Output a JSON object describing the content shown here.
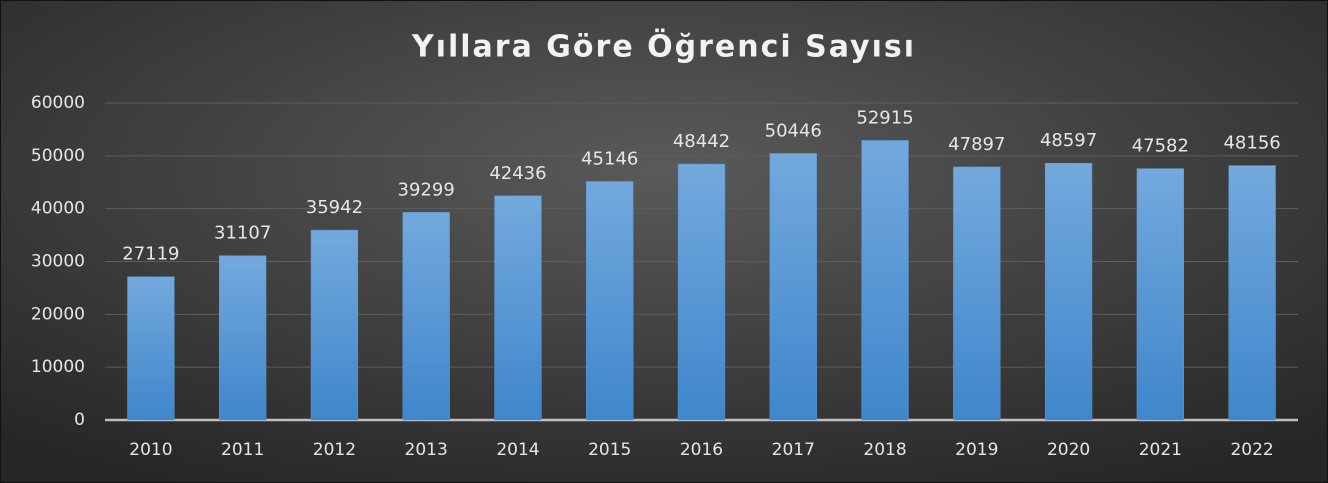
{
  "chart_data": {
    "type": "bar",
    "title": "Yıllara Göre Öğrenci Sayısı",
    "categories": [
      "2010",
      "2011",
      "2012",
      "2013",
      "2014",
      "2015",
      "2016",
      "2017",
      "2018",
      "2019",
      "2020",
      "2021",
      "2022"
    ],
    "values": [
      27119,
      31107,
      35942,
      39299,
      42436,
      45146,
      48442,
      50446,
      52915,
      47897,
      48597,
      47582,
      48156
    ],
    "color": "#5b9bd5",
    "ylim": [
      0,
      60000
    ],
    "yticks": [
      0,
      10000,
      20000,
      30000,
      40000,
      50000,
      60000
    ],
    "grid": true
  }
}
